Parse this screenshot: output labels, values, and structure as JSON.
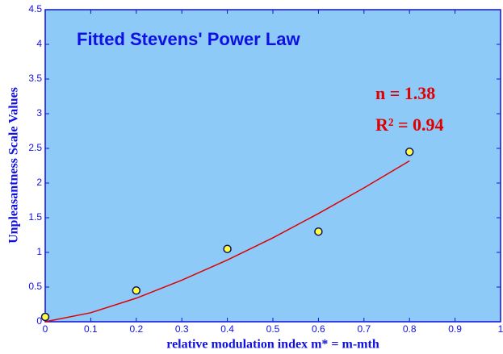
{
  "chart_data": {
    "type": "scatter",
    "title": "Fitted Stevens' Power Law",
    "xlabel": "relative modulation index  m* = m-mth",
    "ylabel": "Unpleasantness  Scale  Values",
    "annotations": [
      "n  =  1.38",
      "R² = 0.94"
    ],
    "series": [
      {
        "type": "scatter",
        "color": "#ffff40",
        "x": [
          0,
          0.2,
          0.4,
          0.6,
          0.8
        ],
        "values": [
          0.07,
          0.45,
          1.05,
          1.3,
          2.45
        ]
      },
      {
        "type": "line",
        "color": "#e00000",
        "x": [
          0,
          0.1,
          0.2,
          0.3,
          0.4,
          0.5,
          0.6,
          0.7,
          0.8
        ],
        "values": [
          0,
          0.13,
          0.34,
          0.6,
          0.89,
          1.21,
          1.56,
          1.93,
          2.32
        ]
      }
    ],
    "xlim": [
      0,
      1
    ],
    "xticks": [
      0,
      0.1,
      0.2,
      0.3,
      0.4,
      0.5,
      0.6,
      0.7,
      0.8,
      0.9,
      1
    ],
    "ylim": [
      0,
      4.5
    ],
    "yticks": [
      0,
      0.5,
      1,
      1.5,
      2,
      2.5,
      3,
      3.5,
      4,
      4.5
    ],
    "background": "#8ecaf8",
    "grid": false
  }
}
